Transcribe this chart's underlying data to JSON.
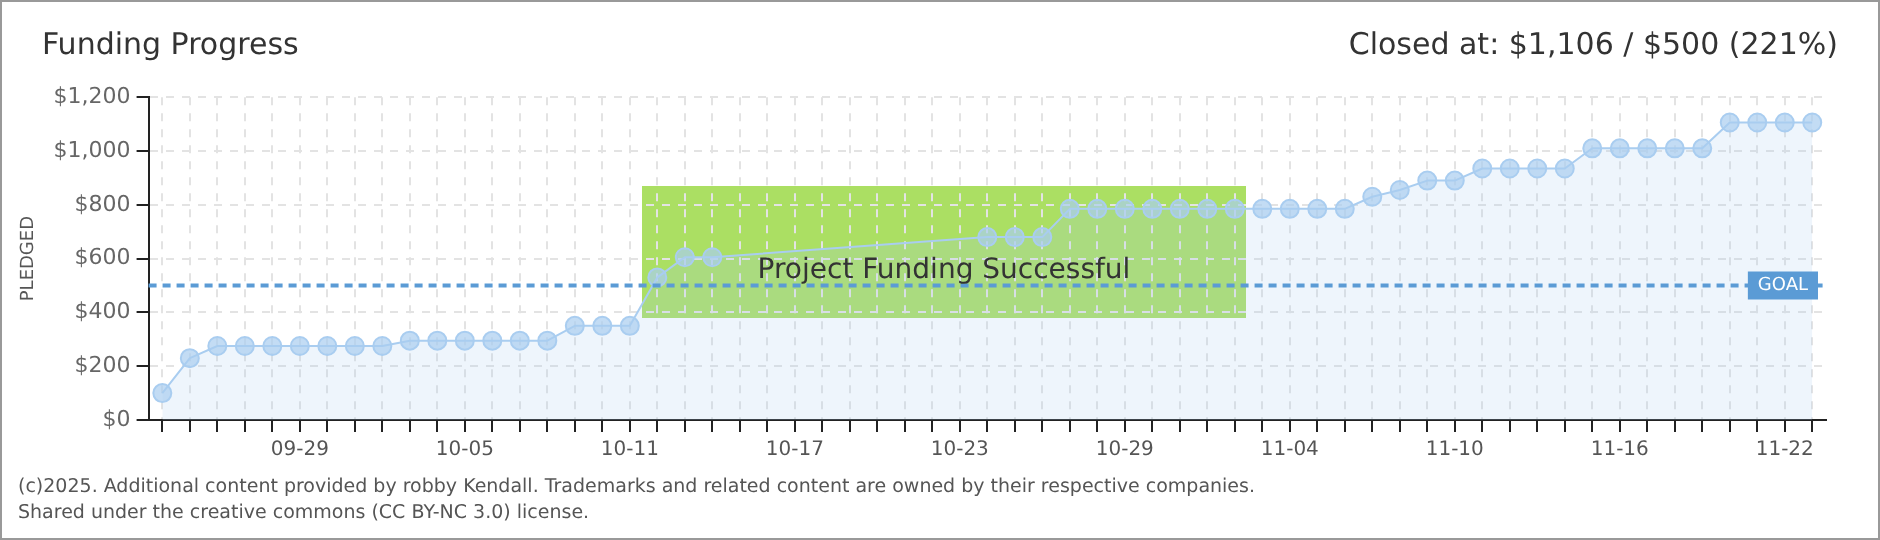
{
  "chart_data": {
    "type": "area",
    "title": "Funding Progress",
    "ylabel": "PLEDGED",
    "annotations": [
      "Project Funding Successful",
      "Closed at: $1,106 / $500 (221%)",
      "(c)2025. Additional content provided by robby Kendall. Trademarks and related content are owned by their respective companies.",
      "Shared under the creative commons (CC BY-NC 3.0) license."
    ],
    "categories": [
      null,
      null,
      null,
      null,
      null,
      "09-29",
      null,
      null,
      null,
      null,
      null,
      "10-05",
      null,
      null,
      null,
      null,
      null,
      "10-11",
      null,
      null,
      null,
      null,
      null,
      "10-17",
      null,
      null,
      null,
      null,
      null,
      "10-23",
      null,
      null,
      null,
      null,
      null,
      "10-29",
      null,
      null,
      null,
      null,
      null,
      "11-04",
      null,
      null,
      null,
      null,
      null,
      "11-10",
      null,
      null,
      null,
      null,
      null,
      "11-16",
      null,
      null,
      null,
      null,
      null,
      "11-22",
      null
    ],
    "series": [
      {
        "color": "#a9cdf0",
        "values": [
          100,
          230,
          275,
          275,
          275,
          275,
          275,
          275,
          275,
          295,
          295,
          295,
          295,
          295,
          295,
          350,
          350,
          350,
          530,
          605,
          605,
          null,
          null,
          null,
          null,
          null,
          null,
          null,
          null,
          null,
          680,
          680,
          680,
          785,
          785,
          785,
          785,
          785,
          785,
          785,
          785,
          785,
          785,
          785,
          830,
          855,
          890,
          890,
          935,
          935,
          935,
          935,
          1010,
          1010,
          1010,
          1010,
          1010,
          1106,
          1106,
          1106,
          1106
        ]
      }
    ],
    "ylim": [
      0,
      1200
    ],
    "yticks": [
      {
        "value": 0,
        "label": "$0"
      },
      {
        "value": 200,
        "label": "$200"
      },
      {
        "value": 400,
        "label": "$400"
      },
      {
        "value": 600,
        "label": "$600"
      },
      {
        "value": 800,
        "label": "$800"
      },
      {
        "value": 1000,
        "label": "$1,000"
      },
      {
        "value": 1200,
        "label": "$1,200"
      }
    ],
    "ref_lines": [
      {
        "axis": "y",
        "value": 500,
        "label": "GOAL",
        "color": "#5b9bd5",
        "line_style": "dashed"
      }
    ],
    "grid": true,
    "legend": false,
    "marker": "circle",
    "line_style": "solid"
  }
}
